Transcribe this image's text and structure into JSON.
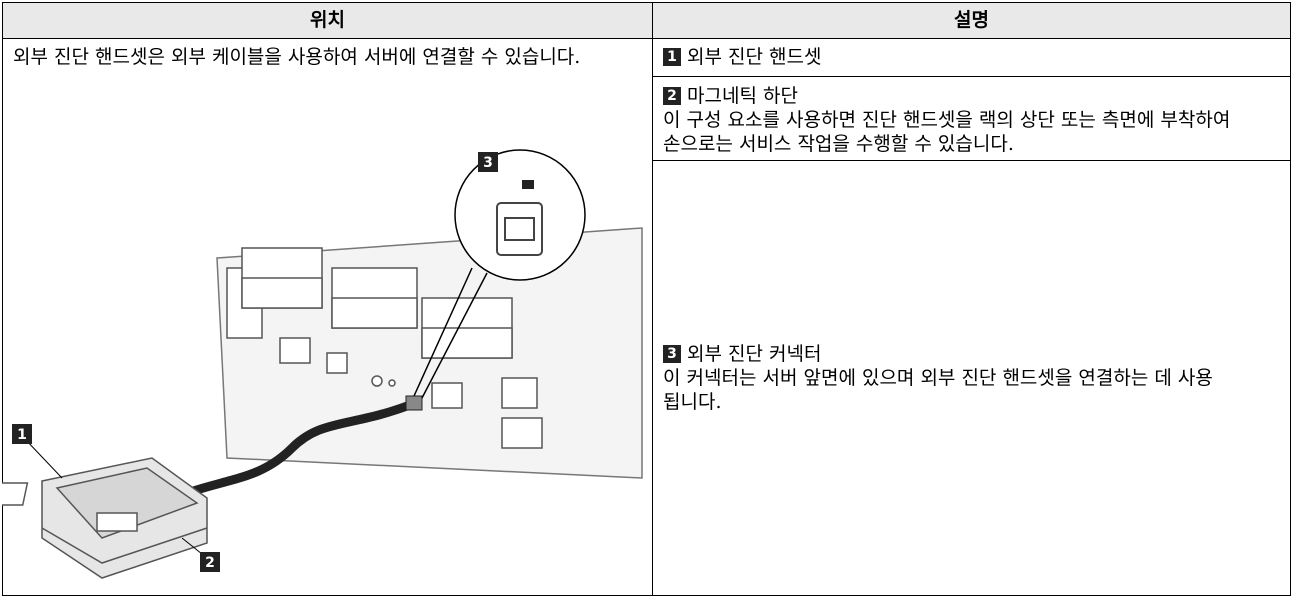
{
  "table": {
    "headers": [
      "위치",
      "설명"
    ],
    "location_text": "외부 진단 핸드셋은 외부 케이블을 사용하여 서버에 연결할 수 있습니다.",
    "figure": {
      "callouts": [
        "1",
        "2",
        "3"
      ]
    },
    "rows": [
      {
        "number": "1",
        "title": "외부 진단 핸드셋"
      },
      {
        "number": "2",
        "title": "마그네틱 하단",
        "description": "이 구성 요소를 사용하면 진단 핸드셋을 랙의 상단 또는 측면에 부착하여 손으로는 서비스 작업을 수행할 수 있습니다."
      },
      {
        "number": "3",
        "title": "외부 진단 커넥터",
        "description": "이 커넥터는 서버 앞면에 있으며 외부 진단 핸드셋을 연결하는 데 사용됩니다."
      }
    ]
  }
}
